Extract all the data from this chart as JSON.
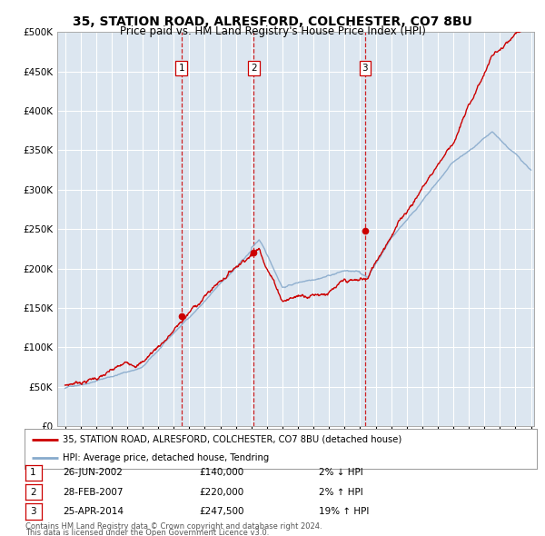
{
  "title": "35, STATION ROAD, ALRESFORD, COLCHESTER, CO7 8BU",
  "subtitle": "Price paid vs. HM Land Registry's House Price Index (HPI)",
  "legend_line1": "35, STATION ROAD, ALRESFORD, COLCHESTER, CO7 8BU (detached house)",
  "legend_line2": "HPI: Average price, detached house, Tendring",
  "footnote1": "Contains HM Land Registry data © Crown copyright and database right 2024.",
  "footnote2": "This data is licensed under the Open Government Licence v3.0.",
  "transactions": [
    {
      "num": 1,
      "date": "26-JUN-2002",
      "price": "£140,000",
      "change": "2% ↓ HPI",
      "year": 2002.49
    },
    {
      "num": 2,
      "date": "28-FEB-2007",
      "price": "£220,000",
      "change": "2% ↑ HPI",
      "year": 2007.16
    },
    {
      "num": 3,
      "date": "25-APR-2014",
      "price": "£247,500",
      "change": "19% ↑ HPI",
      "year": 2014.32
    }
  ],
  "transaction_values": [
    140000,
    220000,
    247500
  ],
  "price_line_color": "#cc0000",
  "hpi_line_color": "#88aacc",
  "background_color": "#dce6f0",
  "plot_bg_color": "#dce6f0",
  "grid_color": "#ffffff",
  "vline_color": "#cc0000",
  "ylim": [
    0,
    500000
  ],
  "yticks": [
    0,
    50000,
    100000,
    150000,
    200000,
    250000,
    300000,
    350000,
    400000,
    450000,
    500000
  ],
  "xlim_start": 1994.5,
  "xlim_end": 2025.2
}
